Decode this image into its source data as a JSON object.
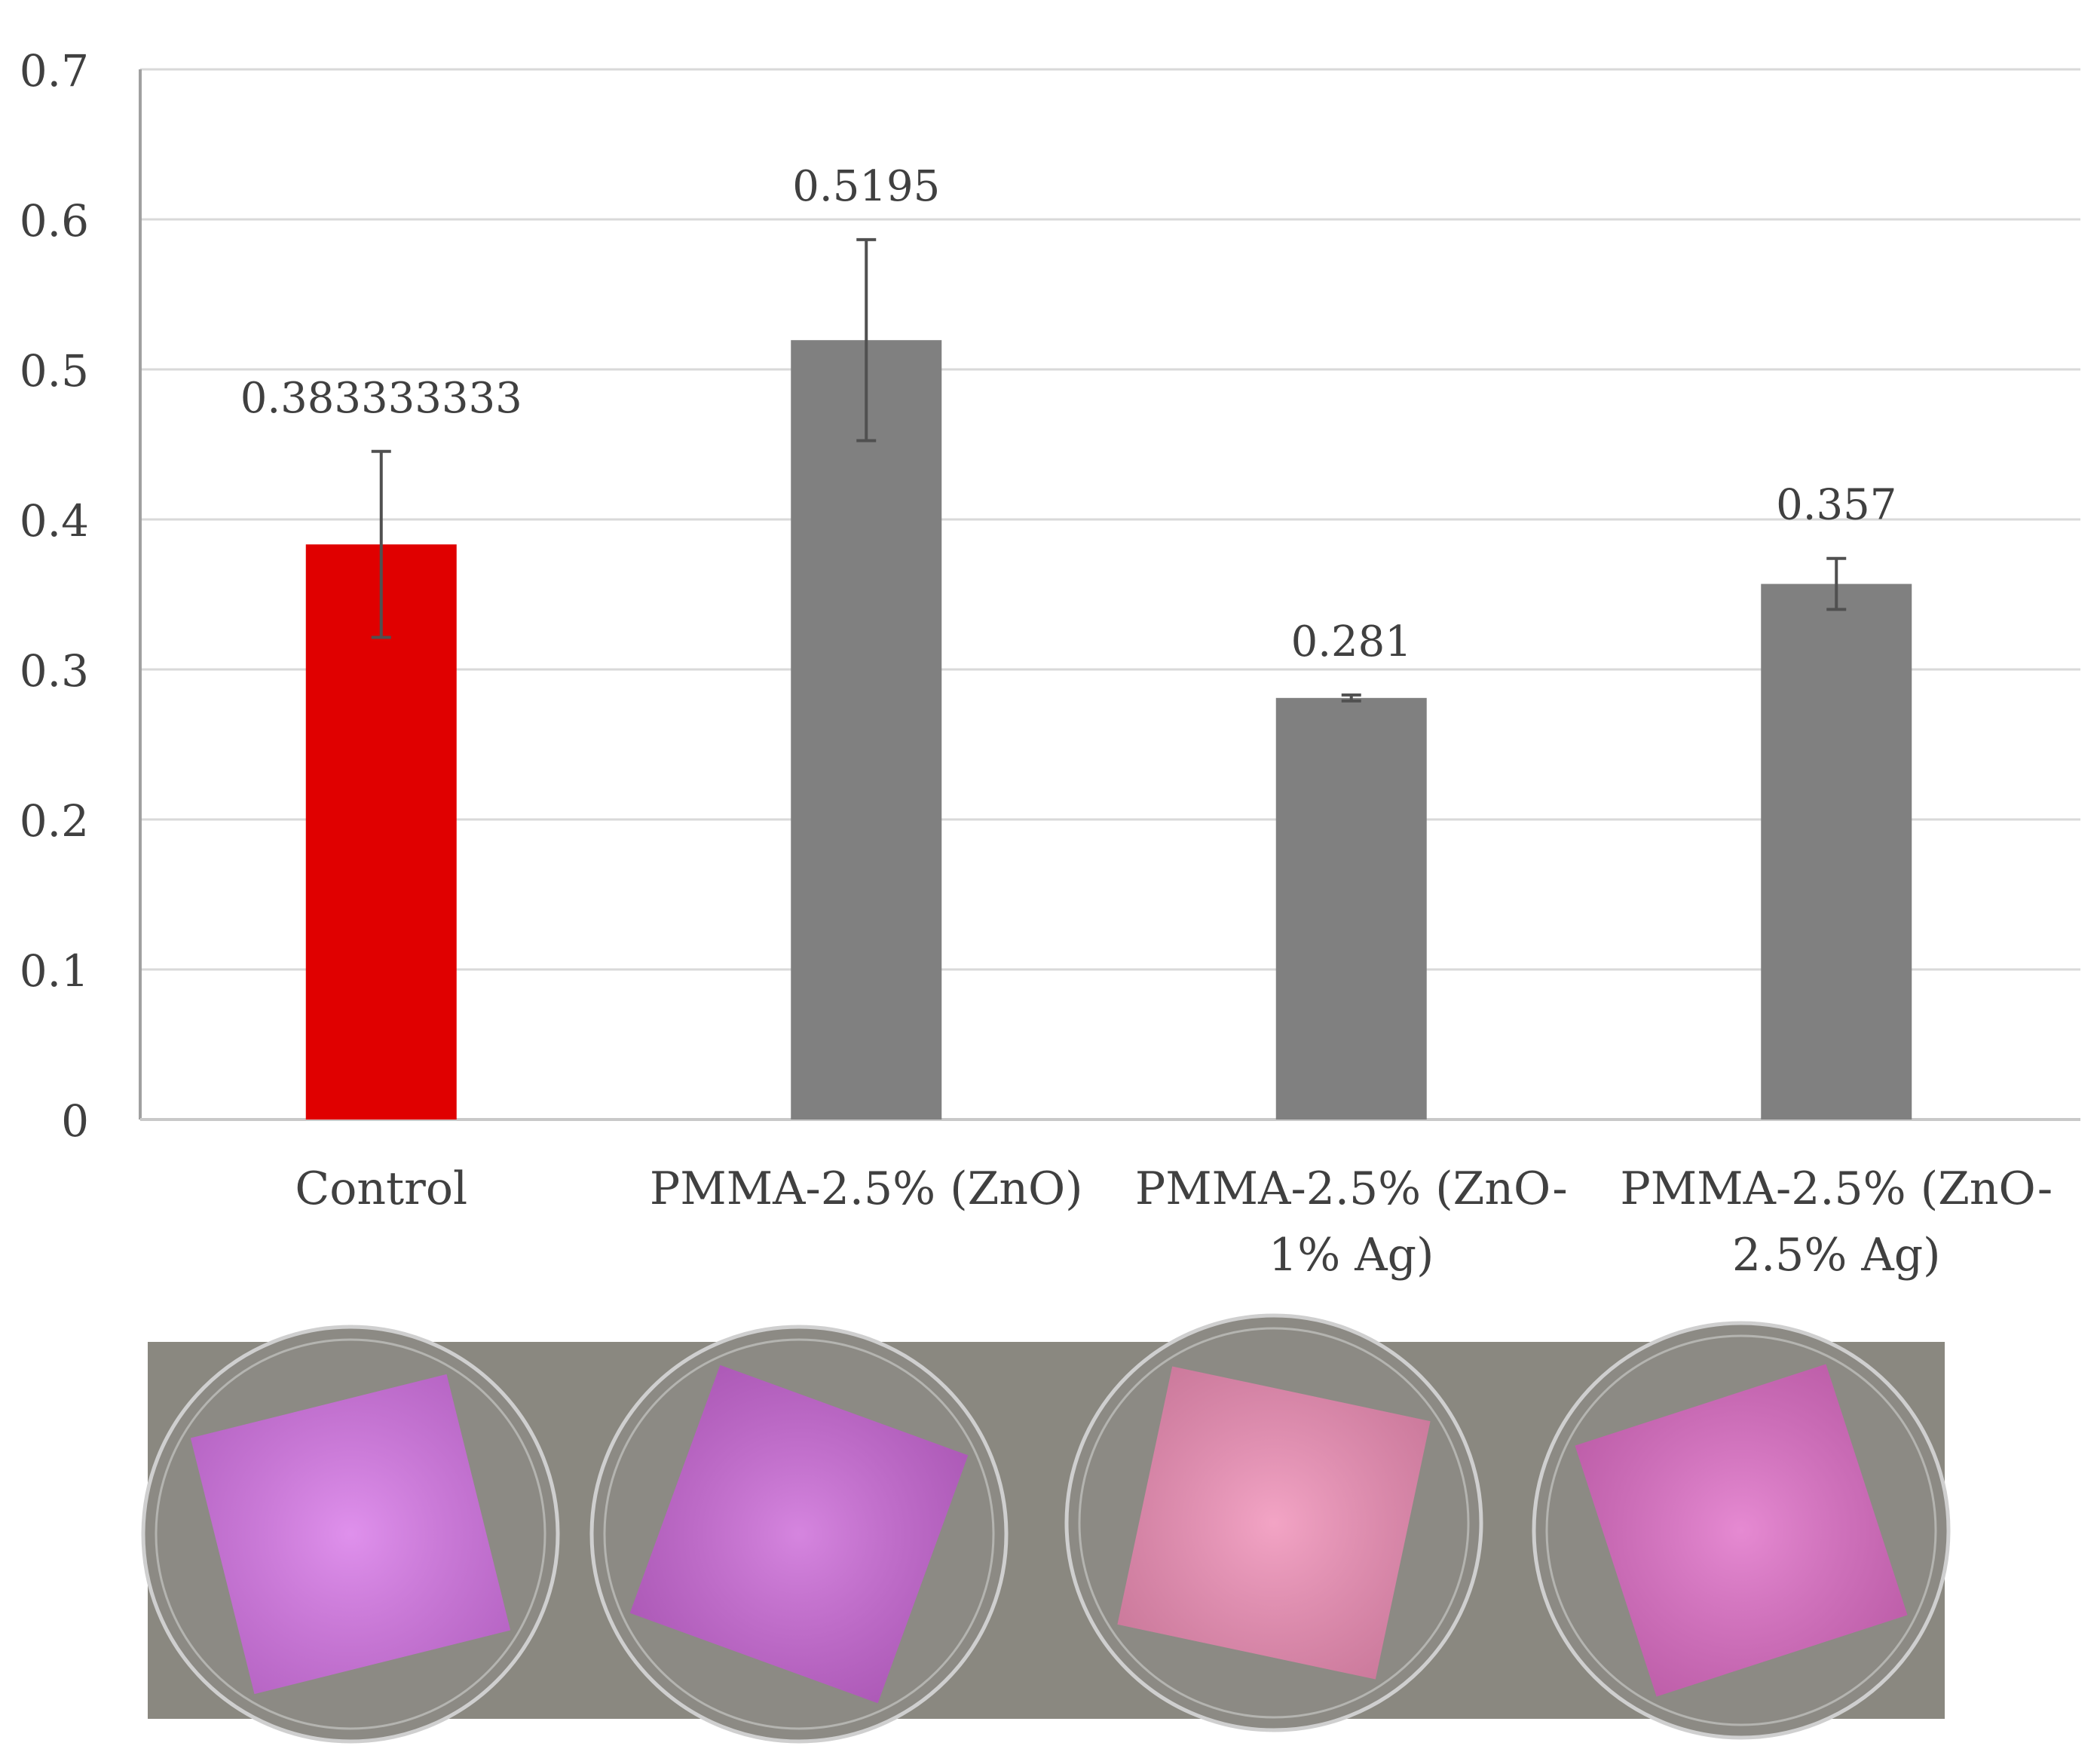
{
  "chart_data": {
    "type": "bar",
    "categories": [
      "Control",
      "PMMA-2.5% (ZnO)",
      "PMMA-2.5% (ZnO-1% Ag)",
      "PMMA-2.5% (ZnO-2.5% Ag)"
    ],
    "category_label_lines": [
      [
        "Control"
      ],
      [
        "PMMA-2.5% (ZnO)"
      ],
      [
        "PMMA-2.5% (ZnO-",
        "1% Ag)"
      ],
      [
        "PMMA-2.5% (ZnO-",
        "2.5% Ag)"
      ]
    ],
    "values": [
      0.383333333,
      0.5195,
      0.281,
      0.357
    ],
    "data_labels": [
      "0.383333333",
      "0.5195",
      "0.281",
      "0.357"
    ],
    "error_bars": [
      0.062,
      0.067,
      0.002,
      0.017
    ],
    "bar_colors": [
      "#e00000",
      "#808080",
      "#808080",
      "#808080"
    ],
    "ylim": [
      0,
      0.7
    ],
    "yticks": [
      "0",
      "0.1",
      "0.2",
      "0.3",
      "0.4",
      "0.5",
      "0.6",
      "0.7"
    ],
    "grid": true,
    "title": "",
    "xlabel": "",
    "ylabel": ""
  },
  "photo": {
    "background_color": "#8a8880",
    "samples": [
      {
        "tile_color": "#d878e8",
        "well": "plate-well-control"
      },
      {
        "tile_color": "#cc6ad8",
        "well": "plate-well-zno"
      },
      {
        "tile_color": "#f090b8",
        "well": "plate-well-zno-1ag"
      },
      {
        "tile_color": "#e070c8",
        "well": "plate-well-zno-25ag"
      }
    ]
  }
}
